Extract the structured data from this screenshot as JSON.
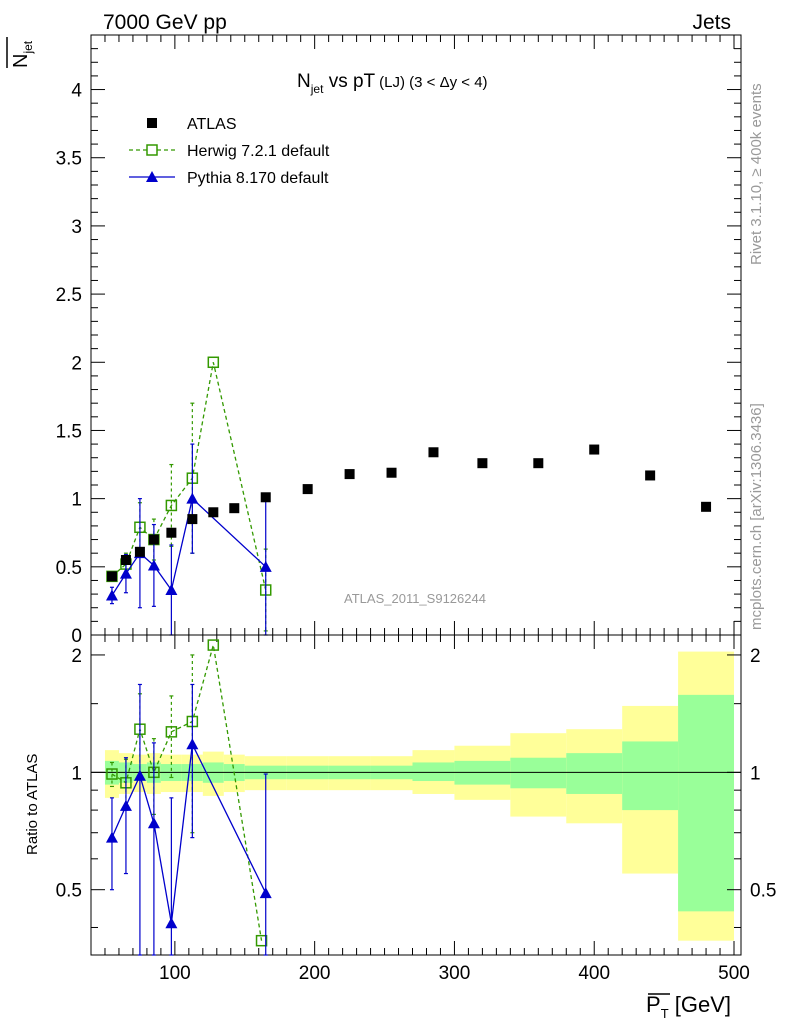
{
  "header": {
    "left_title": "7000 GeV pp",
    "right_title": "Jets"
  },
  "watermarks": {
    "rivet": "Rivet 3.1.10, ≥ 400k events",
    "mcplots": "mcplots.cern.ch [arXiv:1306.3436]",
    "analysis": "ATLAS_2011_S9126244"
  },
  "chart_data": [
    {
      "type": "scatter",
      "name": "main",
      "title": "N_jet vs pT (LJ) (3 < Δy < 4)",
      "title_parts": {
        "main": "N",
        "sub": "jet",
        "rest": " vs pT",
        "small": "(LJ) (3 < Δy < 4)"
      },
      "ylabel": "N_jet (mean)",
      "ylabel_parts": {
        "main": "N",
        "sub": "jet"
      },
      "xlim": [
        40,
        505
      ],
      "ylim": [
        0,
        4.4
      ],
      "yticks": [
        0,
        0.5,
        1,
        1.5,
        2,
        2.5,
        3,
        3.5,
        4
      ],
      "ytick_labels": [
        "0",
        "0.5",
        "1",
        "1.5",
        "2",
        "2.5",
        "3",
        "3.5",
        "4"
      ],
      "legend": {
        "placement": "top-left",
        "entries": [
          "ATLAS",
          "Herwig 7.2.1 default",
          "Pythia 8.170 default"
        ]
      },
      "series": [
        {
          "name": "ATLAS",
          "color": "#000000",
          "marker": "filled-square",
          "x": [
            55,
            65,
            75,
            85,
            97.5,
            112.5,
            127.5,
            142.5,
            165,
            195,
            225,
            255,
            285,
            320,
            360,
            400,
            440,
            480
          ],
          "y": [
            0.43,
            0.55,
            0.61,
            0.7,
            0.75,
            0.85,
            0.9,
            0.93,
            1.01,
            1.07,
            1.18,
            1.19,
            1.34,
            1.26,
            1.26,
            1.36,
            1.17,
            0.94
          ]
        },
        {
          "name": "Herwig 7.2.1 default",
          "color": "#339900",
          "marker": "open-square",
          "line": "dashed",
          "x": [
            55,
            65,
            75,
            85,
            97.5,
            112.5,
            127.5,
            165
          ],
          "y": [
            0.43,
            0.52,
            0.79,
            0.7,
            0.95,
            1.15,
            2.0,
            0.33
          ],
          "yerr": [
            0.03,
            0.08,
            0.18,
            0.15,
            0.3,
            0.55,
            0.0,
            0.3
          ]
        },
        {
          "name": "Pythia 8.170 default",
          "color": "#0000cc",
          "marker": "filled-triangle",
          "line": "solid",
          "x": [
            55,
            65,
            75,
            85,
            97.5,
            112.5,
            165
          ],
          "y": [
            0.29,
            0.45,
            0.6,
            0.51,
            0.33,
            1.0,
            0.5
          ],
          "yerr": [
            0.06,
            0.14,
            0.4,
            0.3,
            0.33,
            0.4,
            0.5
          ]
        }
      ]
    },
    {
      "type": "scatter",
      "name": "ratio",
      "ylabel": "Ratio to ATLAS",
      "xlabel": "P_T [GeV]",
      "xlabel_parts": {
        "main": "P",
        "sub": "T",
        "rest": " [GeV]"
      },
      "xlim": [
        40,
        505
      ],
      "ylim": [
        0.34,
        2.25
      ],
      "xticks": [
        100,
        200,
        300,
        400,
        500
      ],
      "xtick_labels": [
        "100",
        "200",
        "300",
        "400",
        "500"
      ],
      "yticks": [
        0.5,
        1,
        2
      ],
      "ytick_labels": [
        "0.5",
        "1",
        "2"
      ],
      "uncertainty_bands": {
        "edges": [
          50,
          60,
          70,
          80,
          90,
          105,
          120,
          135,
          150,
          180,
          210,
          240,
          270,
          300,
          340,
          380,
          420,
          460,
          500
        ],
        "inner_low": [
          0.93,
          0.94,
          0.95,
          0.94,
          0.95,
          0.95,
          0.94,
          0.95,
          0.96,
          0.96,
          0.96,
          0.96,
          0.95,
          0.93,
          0.91,
          0.88,
          0.8,
          0.44
        ],
        "inner_high": [
          1.07,
          1.06,
          1.05,
          1.06,
          1.05,
          1.05,
          1.06,
          1.05,
          1.04,
          1.04,
          1.04,
          1.04,
          1.06,
          1.07,
          1.09,
          1.12,
          1.2,
          1.58
        ],
        "outer_low": [
          0.86,
          0.88,
          0.89,
          0.88,
          0.89,
          0.89,
          0.87,
          0.89,
          0.9,
          0.9,
          0.9,
          0.9,
          0.88,
          0.85,
          0.77,
          0.74,
          0.55,
          0.37
        ],
        "outer_high": [
          1.14,
          1.12,
          1.11,
          1.12,
          1.11,
          1.11,
          1.13,
          1.11,
          1.1,
          1.1,
          1.1,
          1.1,
          1.14,
          1.17,
          1.26,
          1.29,
          1.48,
          2.04
        ],
        "inner_color": "#99ff99",
        "outer_color": "#ffff99"
      },
      "series": [
        {
          "name": "Herwig 7.2.1 default",
          "color": "#339900",
          "marker": "open-square",
          "line": "dashed",
          "x": [
            55,
            65,
            75,
            85,
            97.5,
            112.5,
            127.5,
            162
          ],
          "y": [
            0.99,
            0.94,
            1.29,
            1.0,
            1.27,
            1.35,
            2.12,
            0.37
          ],
          "yerr": [
            0.07,
            0.14,
            0.3,
            0.22,
            0.3,
            0.65,
            0.0,
            0.0
          ]
        },
        {
          "name": "Pythia 8.170 default",
          "color": "#0000cc",
          "marker": "filled-triangle",
          "line": "solid",
          "x": [
            55,
            65,
            75,
            85,
            97.5,
            112.5,
            165
          ],
          "y": [
            0.68,
            0.82,
            0.98,
            0.74,
            0.41,
            1.18,
            0.49
          ],
          "yerr": [
            0.18,
            0.27,
            0.7,
            0.45,
            0.45,
            0.5,
            0.5
          ]
        }
      ]
    }
  ]
}
